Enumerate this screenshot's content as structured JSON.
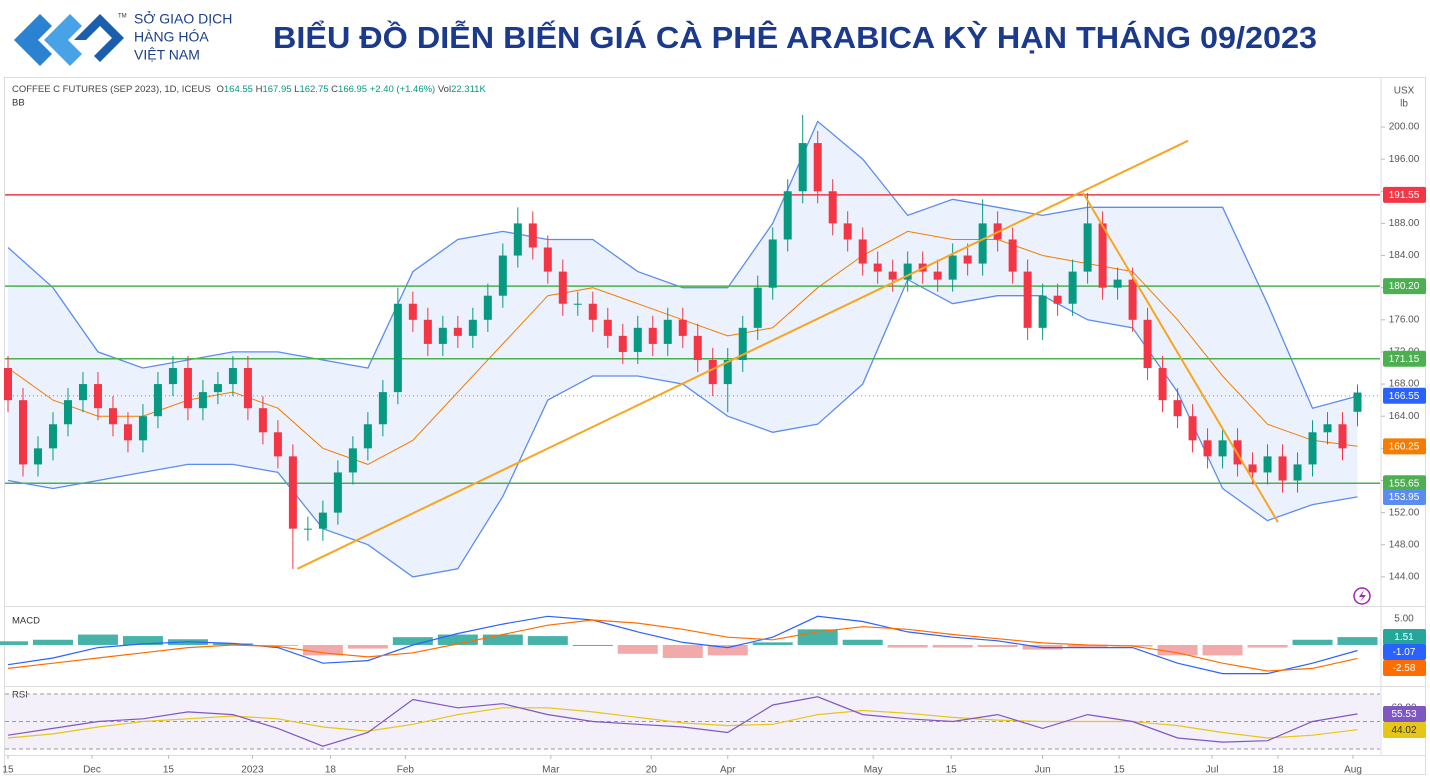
{
  "header": {
    "logo_lines": [
      "SỞ GIAO DỊCH",
      "HÀNG HÓA",
      "VIỆT NAM"
    ],
    "trademark": "TM",
    "title": "BIỂU ĐỒ DIỄN BIẾN GIÁ CÀ PHÊ ARABICA KỲ HẠN THÁNG 09/2023"
  },
  "chart_data": [
    {
      "type": "candlestick",
      "symbol": "COFFEE C FUTURES (SEP 2023), 1D, ICEUS",
      "ohlc_keys": [
        "O",
        "H",
        "L",
        "C"
      ],
      "change": "+2.40 (+1.46%)",
      "volume_key": "Vol",
      "volume": "22.311K",
      "indicator": "BB",
      "unit": [
        "USX",
        "lb"
      ],
      "up_color": "#089981",
      "down_color": "#f23645",
      "open": [
        170,
        166,
        158,
        160,
        163,
        166,
        168,
        165,
        163,
        161,
        164,
        168,
        170,
        165,
        167,
        168,
        170,
        165,
        162,
        159,
        150,
        150,
        152,
        157,
        160,
        163,
        167,
        178,
        176,
        173,
        175,
        174,
        176,
        179,
        184,
        188,
        185,
        182,
        178,
        178,
        176,
        174,
        172,
        175,
        173,
        176,
        174,
        171,
        168,
        171,
        175,
        180,
        186,
        192,
        198,
        192,
        188,
        186,
        183,
        182,
        181,
        183,
        182,
        181,
        184,
        183,
        188,
        186,
        182,
        175,
        179,
        178,
        182,
        188,
        180,
        181,
        176,
        170,
        166,
        164,
        161,
        159,
        161,
        158,
        157,
        159,
        156,
        158,
        162,
        163,
        164.55
      ],
      "high": [
        171.5,
        167.5,
        161.5,
        164.5,
        167.5,
        169.5,
        169.5,
        166.5,
        164.5,
        165.5,
        169.5,
        171.5,
        171.5,
        168.5,
        169.5,
        171.5,
        171.5,
        166.5,
        163.5,
        160.5,
        151.5,
        153.5,
        158.5,
        161.5,
        164.5,
        168.5,
        180,
        179.5,
        177.5,
        176.5,
        176.5,
        177.5,
        180.5,
        185.5,
        190,
        189.5,
        186.5,
        183.5,
        179.5,
        179.5,
        177.5,
        175.5,
        176.5,
        176.5,
        177.5,
        177.5,
        175.5,
        172.5,
        172.5,
        176.5,
        181.5,
        187.5,
        193.5,
        201.5,
        199.5,
        193.5,
        189.5,
        187.5,
        184.5,
        183.5,
        184.5,
        184.5,
        183.5,
        185.5,
        185.5,
        191,
        189.5,
        187.5,
        183.5,
        180.5,
        180.5,
        183.5,
        191.8,
        189.5,
        182.5,
        182.5,
        177.5,
        171.5,
        167.5,
        165.5,
        162.5,
        162.5,
        162.5,
        159.5,
        160.5,
        160.5,
        159.5,
        163.5,
        164.5,
        164.5,
        167.95
      ],
      "low": [
        164.5,
        156.5,
        156.5,
        158.5,
        161.5,
        164.5,
        163.5,
        161.5,
        159.5,
        159.5,
        162.5,
        166.5,
        163.5,
        163.5,
        165.5,
        166.5,
        163.5,
        160.5,
        157.5,
        145,
        148.5,
        148.5,
        150.5,
        155.5,
        158.5,
        161.5,
        165.5,
        174.5,
        171.5,
        171.5,
        172.5,
        172.5,
        174.5,
        177.5,
        182.5,
        183.5,
        180.5,
        176.5,
        176.5,
        174.5,
        172.5,
        170.5,
        170.5,
        171.5,
        171.5,
        172.5,
        169.5,
        166.5,
        164.5,
        169.5,
        173.5,
        178.5,
        184.5,
        190.5,
        190.5,
        186.5,
        184.5,
        181.5,
        180.5,
        179.5,
        179.5,
        180.5,
        179.5,
        179.5,
        181.5,
        181.5,
        184.5,
        180.5,
        173.5,
        173.5,
        176.5,
        176.5,
        180.5,
        178.5,
        178.5,
        174.5,
        168.5,
        164.5,
        162.5,
        159.5,
        157.5,
        157.5,
        156.5,
        155.5,
        155.5,
        154.5,
        154.5,
        156.5,
        160.5,
        158.5,
        162.75
      ],
      "close": [
        166,
        158,
        160,
        163,
        166,
        168,
        165,
        163,
        161,
        164,
        168,
        170,
        165,
        167,
        168,
        170,
        165,
        162,
        159,
        150,
        150,
        152,
        157,
        160,
        163,
        167,
        178,
        176,
        173,
        175,
        174,
        176,
        179,
        184,
        188,
        185,
        182,
        178,
        178,
        176,
        174,
        172,
        175,
        173,
        176,
        174,
        171,
        168,
        171,
        175,
        180,
        186,
        192,
        198,
        192,
        188,
        186,
        183,
        182,
        181,
        183,
        182,
        181,
        184,
        183,
        188,
        186,
        182,
        175,
        179,
        178,
        182,
        188,
        180,
        181,
        176,
        170,
        166,
        164,
        161,
        159,
        161,
        158,
        157,
        159,
        156,
        158,
        162,
        163,
        160,
        166.95
      ],
      "xlim": [
        -0.2,
        91.5
      ],
      "ylim": [
        140.5,
        206.1
      ],
      "yticks": [
        {
          "value": 144,
          "label": "144.00"
        },
        {
          "value": 148,
          "label": "148.00"
        },
        {
          "value": 152,
          "label": "152.00"
        },
        {
          "value": 156,
          "label": "156.00"
        },
        {
          "value": 160,
          "label": "160.00"
        },
        {
          "value": 164,
          "label": "164.00"
        },
        {
          "value": 168,
          "label": "168.00"
        },
        {
          "value": 172,
          "label": "172.00"
        },
        {
          "value": 176,
          "label": "176.00"
        },
        {
          "value": 180,
          "label": "180.00"
        },
        {
          "value": 184,
          "label": "184.00"
        },
        {
          "value": 188,
          "label": "188.00"
        },
        {
          "value": 192,
          "label": "192.00"
        },
        {
          "value": 196,
          "label": "196.00"
        },
        {
          "value": 200,
          "label": "200.00"
        }
      ],
      "xticks": [
        {
          "value": 0,
          "label": "15"
        },
        {
          "value": 5.6,
          "label": "Dec"
        },
        {
          "value": 10.7,
          "label": "15"
        },
        {
          "value": 16.3,
          "label": "2023"
        },
        {
          "value": 21.5,
          "label": "18"
        },
        {
          "value": 26.5,
          "label": "Feb"
        },
        {
          "value": 36.2,
          "label": "Mar"
        },
        {
          "value": 42.9,
          "label": "20"
        },
        {
          "value": 48,
          "label": "Apr"
        },
        {
          "value": 57.7,
          "label": "May"
        },
        {
          "value": 62.9,
          "label": "15"
        },
        {
          "value": 69,
          "label": "Jun"
        },
        {
          "value": 74.1,
          "label": "15"
        },
        {
          "value": 80.3,
          "label": "Jul"
        },
        {
          "value": 84.7,
          "label": "18"
        },
        {
          "value": 89.7,
          "label": "Aug"
        }
      ],
      "levels": [
        {
          "value": 191.55,
          "label": "191.55",
          "color": "#f23645",
          "style": "solid"
        },
        {
          "value": 180.2,
          "label": "180.20",
          "color": "#4caf50",
          "style": "solid"
        },
        {
          "value": 171.15,
          "label": "171.15",
          "color": "#4caf50",
          "style": "solid"
        },
        {
          "value": 166.55,
          "label": "166.55",
          "color": "#2962ff",
          "style": "dotted"
        },
        {
          "value": 155.65,
          "label": "155.65",
          "color": "#4caf50",
          "style": "solid"
        }
      ],
      "bands": {
        "x": [
          0,
          3,
          6,
          9,
          12,
          15,
          18,
          21,
          24,
          27,
          30,
          33,
          36,
          39,
          42,
          45,
          48,
          51,
          54,
          57,
          60,
          63,
          66,
          69,
          72,
          75,
          78,
          81,
          84,
          87,
          90
        ],
        "upper": [
          185,
          180,
          172,
          170,
          171,
          172,
          172,
          171,
          170,
          182,
          186,
          187,
          186,
          186,
          182,
          180,
          180,
          188,
          200.7,
          196,
          189,
          191,
          190,
          189,
          190,
          190,
          190,
          190,
          178,
          165,
          166.5
        ],
        "middle": [
          170,
          166,
          164,
          164,
          166,
          167,
          165,
          160,
          158,
          161,
          167,
          173,
          179,
          180,
          178,
          176,
          174,
          175,
          180,
          184,
          187,
          186,
          186,
          184,
          183,
          182,
          176,
          169,
          163,
          161,
          160.25
        ],
        "lower": [
          156,
          155,
          156,
          157,
          158,
          158,
          157,
          150,
          148,
          144,
          145,
          154,
          166,
          169,
          169,
          168,
          164,
          162,
          163,
          168,
          181,
          178,
          179,
          179,
          176,
          175,
          167,
          155,
          151,
          153,
          153.95
        ],
        "band_color": "#5b8def",
        "middle_color": "#f57c00"
      },
      "trendlines": [
        {
          "x": [
            19.3,
            78.7
          ],
          "y": [
            145,
            198.3
          ]
        },
        {
          "x": [
            71.7,
            84.7
          ],
          "y": [
            191.8,
            150.8
          ]
        }
      ],
      "trend_color": "#f5a623"
    },
    {
      "type": "macd",
      "title": "MACD",
      "x": [
        0,
        3,
        6,
        9,
        12,
        15,
        18,
        21,
        24,
        27,
        30,
        33,
        36,
        39,
        42,
        45,
        48,
        51,
        54,
        57,
        60,
        63,
        66,
        69,
        72,
        75,
        78,
        81,
        84,
        87,
        90
      ],
      "macd": [
        -3.8,
        -2.5,
        -0.5,
        0.2,
        0.6,
        0.3,
        -0.5,
        -3.5,
        -3,
        0,
        2.2,
        4,
        5.5,
        4.8,
        2.5,
        0.5,
        -0.5,
        1.5,
        5.5,
        4.5,
        2.5,
        1.5,
        0.8,
        -0.5,
        -0.5,
        -0.5,
        -3.5,
        -5.5,
        -5.5,
        -3.5,
        -1.07
      ],
      "signal": [
        -4.5,
        -3.5,
        -2.5,
        -1.5,
        -0.5,
        0,
        -0.3,
        -1.5,
        -2.3,
        -1.5,
        0.2,
        2,
        3.8,
        4.8,
        4.2,
        3,
        1.5,
        1,
        2.5,
        3.5,
        3,
        2,
        1.2,
        0.4,
        0,
        -0.2,
        -1.5,
        -3.5,
        -5,
        -4.5,
        -2.58
      ],
      "histogram": [
        0.7,
        1,
        2,
        1.7,
        1.1,
        0.3,
        -0.2,
        -2,
        -0.7,
        1.5,
        2,
        2,
        1.7,
        0,
        -1.7,
        -2.5,
        -2,
        0.5,
        3,
        1,
        -0.5,
        -0.5,
        -0.4,
        -0.9,
        -0.5,
        -0.3,
        -2,
        -2,
        -0.5,
        1,
        1.51
      ],
      "colors": {
        "macd": "#2962ff",
        "signal": "#ff6d00",
        "positive": "#26a69a",
        "negative": "#ef9a9a"
      },
      "xlim": [
        -0.2,
        91.5
      ],
      "ylim": [
        -7.5,
        7.1
      ],
      "yticks": [
        {
          "value": 5,
          "label": "5.00"
        }
      ]
    },
    {
      "type": "rsi",
      "title": "RSI",
      "x": [
        0,
        3,
        6,
        9,
        12,
        15,
        18,
        21,
        24,
        27,
        30,
        33,
        36,
        39,
        42,
        45,
        48,
        51,
        54,
        57,
        60,
        63,
        66,
        69,
        72,
        75,
        78,
        81,
        84,
        87,
        90
      ],
      "rsi": [
        40,
        45,
        50,
        52,
        57,
        55,
        45,
        32,
        42,
        66,
        60,
        63,
        55,
        50,
        48,
        46,
        42,
        62,
        68,
        55,
        52,
        50,
        55,
        45,
        55,
        50,
        38,
        35,
        36,
        50,
        55.53
      ],
      "rsi_ma": [
        38,
        41,
        46,
        50,
        52,
        54,
        52,
        46,
        43,
        48,
        55,
        60,
        60,
        57,
        53,
        49,
        47,
        48,
        55,
        58,
        56,
        53,
        51,
        50,
        50,
        50,
        47,
        42,
        38,
        40,
        44.02
      ],
      "colors": {
        "rsi": "#7e57c2",
        "rsi_ma": "#e6c619"
      },
      "levels": [
        70,
        50,
        30
      ],
      "xlim": [
        -0.2,
        91.5
      ],
      "ylim": [
        27.8,
        74.4
      ],
      "yticks": [
        {
          "value": 60,
          "label": "60.00"
        },
        {
          "value": 40,
          "label": "40.00"
        }
      ]
    }
  ]
}
